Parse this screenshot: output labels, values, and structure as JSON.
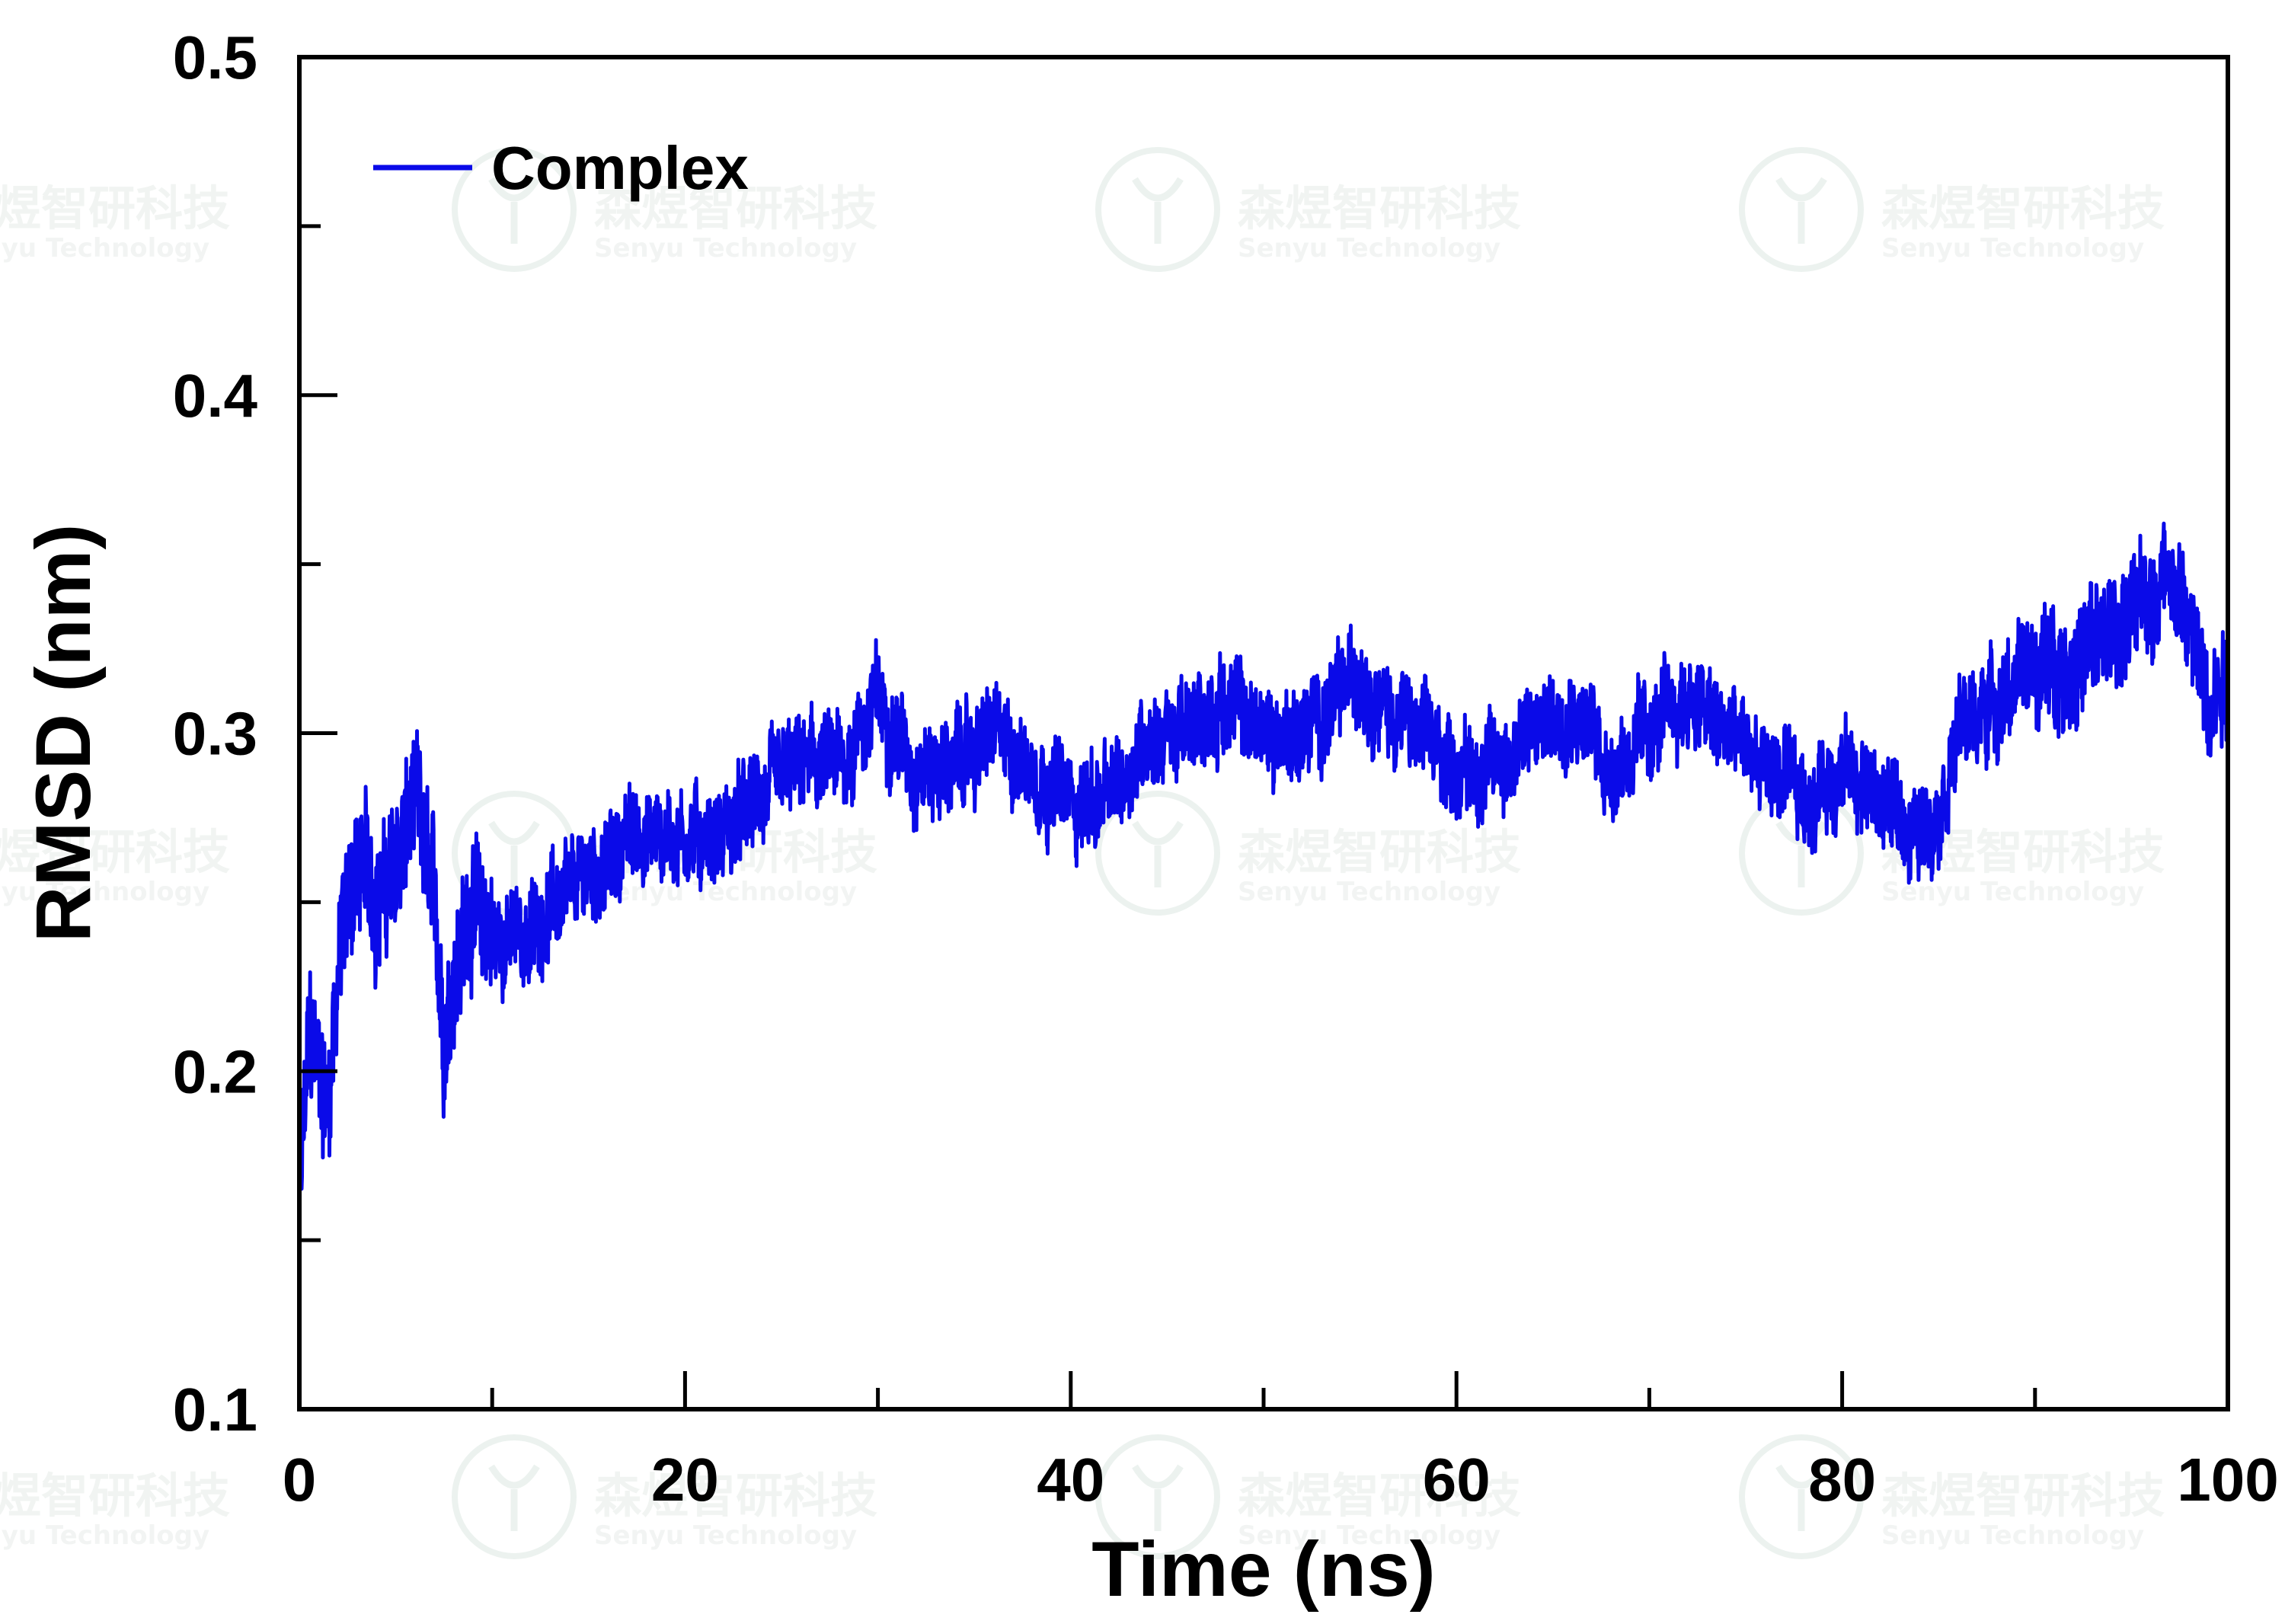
{
  "watermark": {
    "name_cn": "森煜智研科技",
    "name_en": "Senyu Technology"
  },
  "colors": {
    "series": "#0a0ae8",
    "axis": "#000000",
    "watermark": "#dde8e2"
  },
  "chart_data": {
    "type": "line",
    "title": "",
    "xlabel": "Time (ns)",
    "ylabel": "RMSD (nm)",
    "xlim": [
      0,
      100
    ],
    "ylim": [
      0.1,
      0.5
    ],
    "x_major_ticks": [
      0,
      20,
      40,
      60,
      80,
      100
    ],
    "x_tick_labels": [
      "0",
      "20",
      "40",
      "60",
      "80",
      "100"
    ],
    "y_major_ticks": [
      0.1,
      0.2,
      0.3,
      0.4,
      0.5
    ],
    "y_tick_labels": [
      "0.1",
      "0.2",
      "0.3",
      "0.4",
      "0.5"
    ],
    "grid": false,
    "legend_position": "top-left",
    "series": [
      {
        "name": "Complex",
        "color": "#0a0ae8",
        "x": [
          0,
          0.5,
          1,
          1.5,
          2,
          2.5,
          3,
          3.5,
          4,
          5,
          6,
          7,
          7.5,
          8,
          9,
          10,
          11,
          12,
          13,
          14,
          15,
          16,
          17,
          18,
          19,
          20,
          22,
          24,
          26,
          28,
          30,
          32,
          34,
          36,
          38,
          40,
          42,
          44,
          46,
          48,
          50,
          52,
          54,
          55,
          56,
          58,
          60,
          62,
          64,
          66,
          68,
          70,
          72,
          74,
          76,
          78,
          80,
          82,
          84,
          85,
          86,
          88,
          90,
          92,
          94,
          96,
          97,
          98,
          99,
          100
        ],
        "y": [
          0.16,
          0.21,
          0.2,
          0.19,
          0.23,
          0.25,
          0.26,
          0.26,
          0.25,
          0.26,
          0.28,
          0.25,
          0.21,
          0.23,
          0.25,
          0.24,
          0.24,
          0.24,
          0.25,
          0.25,
          0.26,
          0.26,
          0.27,
          0.27,
          0.27,
          0.27,
          0.27,
          0.28,
          0.29,
          0.29,
          0.31,
          0.29,
          0.29,
          0.3,
          0.29,
          0.28,
          0.28,
          0.3,
          0.3,
          0.31,
          0.3,
          0.3,
          0.31,
          0.32,
          0.31,
          0.3,
          0.29,
          0.29,
          0.3,
          0.31,
          0.29,
          0.3,
          0.31,
          0.3,
          0.29,
          0.28,
          0.29,
          0.28,
          0.27,
          0.28,
          0.3,
          0.31,
          0.32,
          0.32,
          0.33,
          0.34,
          0.35,
          0.33,
          0.31,
          0.32
        ]
      }
    ]
  }
}
